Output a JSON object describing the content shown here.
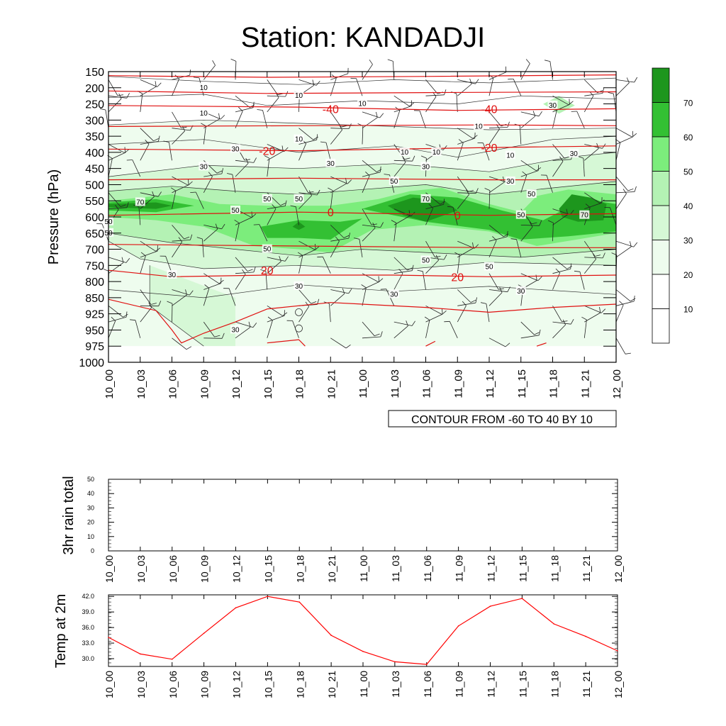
{
  "page": {
    "title": "Station: KANDADJI"
  },
  "chart_data": [
    {
      "type": "heatmap",
      "subtype": "filled contour with wind barbs and temperature isolines",
      "ylabel": "Pressure (hPa)",
      "y_ticks": [
        150,
        200,
        250,
        300,
        350,
        400,
        450,
        500,
        550,
        600,
        650,
        700,
        750,
        800,
        850,
        925,
        950,
        975,
        1000
      ],
      "x_ticks": [
        "10_00",
        "10_03",
        "10_06",
        "10_09",
        "10_12",
        "10_15",
        "10_18",
        "10_21",
        "11_00",
        "11_03",
        "11_06",
        "11_09",
        "11_12",
        "11_15",
        "11_18",
        "11_21",
        "12_00"
      ],
      "info_box": "CONTOUR FROM -60 TO 40 BY 10",
      "colorbar_labels": [
        "10",
        "20",
        "30",
        "40",
        "50",
        "60",
        "70"
      ],
      "colorbar_colors": [
        "#ffffff",
        "#ffffff",
        "#eefcee",
        "#d6f8d6",
        "#b4f2b4",
        "#7ced7c",
        "#33c033",
        "#1d961d"
      ],
      "humidity_labels": [
        {
          "text": "10",
          "time": "10_09",
          "p": "200"
        },
        {
          "text": "10",
          "time": "10_18",
          "p": "225"
        },
        {
          "text": "10",
          "time": "11_00",
          "p": "250"
        },
        {
          "text": "10",
          "time": "10_09",
          "p": "280"
        },
        {
          "text": "10",
          "time": "11_11",
          "p": "320"
        },
        {
          "text": "10",
          "time": "10_18",
          "p": "360"
        },
        {
          "text": "10",
          "time": "11_04",
          "p": "400"
        },
        {
          "text": "10",
          "time": "11_07",
          "p": "400"
        },
        {
          "text": "10",
          "time": "11_14",
          "p": "410"
        },
        {
          "text": "30",
          "time": "11_18",
          "p": "255"
        },
        {
          "text": "30",
          "time": "10_12",
          "p": "390"
        },
        {
          "text": "30",
          "time": "10_09",
          "p": "445"
        },
        {
          "text": "30",
          "time": "10_21",
          "p": "435"
        },
        {
          "text": "30",
          "time": "11_06",
          "p": "445"
        },
        {
          "text": "30",
          "time": "11_20",
          "p": "405"
        },
        {
          "text": "30",
          "time": "11_14",
          "p": "490"
        },
        {
          "text": "50",
          "time": "11_03",
          "p": "490"
        },
        {
          "text": "50",
          "time": "11_16",
          "p": "530"
        },
        {
          "text": "70",
          "time": "10_03",
          "p": "555"
        },
        {
          "text": "50",
          "time": "10_15",
          "p": "545"
        },
        {
          "text": "50",
          "time": "10_18",
          "p": "545"
        },
        {
          "text": "70",
          "time": "11_06",
          "p": "545"
        },
        {
          "text": "50",
          "time": "10_12",
          "p": "580"
        },
        {
          "text": "50",
          "time": "11_15",
          "p": "595"
        },
        {
          "text": "70",
          "time": "11_21",
          "p": "595"
        },
        {
          "text": "50",
          "time": "10_00",
          "p": "615"
        },
        {
          "text": "50",
          "time": "10_00",
          "p": "650"
        },
        {
          "text": "50",
          "time": "10_15",
          "p": "700"
        },
        {
          "text": "50",
          "time": "11_06",
          "p": "735"
        },
        {
          "text": "50",
          "time": "11_12",
          "p": "755"
        },
        {
          "text": "30",
          "time": "10_06",
          "p": "780"
        },
        {
          "text": "30",
          "time": "10_18",
          "p": "815"
        },
        {
          "text": "30",
          "time": "11_03",
          "p": "840"
        },
        {
          "text": "30",
          "time": "11_15",
          "p": "830"
        },
        {
          "text": "30",
          "time": "10_12",
          "p": "950"
        }
      ],
      "temperature_labels": [
        {
          "text": "-40",
          "time": "10_21",
          "p": "265"
        },
        {
          "text": "-40",
          "time": "11_12",
          "p": "265"
        },
        {
          "text": "-20",
          "time": "10_15",
          "p": "395"
        },
        {
          "text": "-20",
          "time": "11_12",
          "p": "385"
        },
        {
          "text": "0",
          "time": "10_21",
          "p": "585"
        },
        {
          "text": "0",
          "time": "11_09",
          "p": "595"
        },
        {
          "text": "20",
          "time": "10_15",
          "p": "765"
        },
        {
          "text": "20",
          "time": "11_09",
          "p": "785"
        }
      ]
    },
    {
      "type": "bar",
      "ylabel": "3hr rain total",
      "ylim": [
        0,
        50
      ],
      "y_ticks": [
        "0",
        "10",
        "20",
        "30",
        "40",
        "50"
      ],
      "x_ticks": [
        "10_00",
        "10_03",
        "10_06",
        "10_09",
        "10_12",
        "10_15",
        "10_18",
        "10_21",
        "11_00",
        "11_03",
        "11_06",
        "11_09",
        "11_12",
        "11_15",
        "11_18",
        "11_21",
        "12_00"
      ],
      "values": [
        0,
        0,
        0,
        0,
        0,
        0,
        0,
        0,
        0,
        0,
        0,
        0,
        0,
        0,
        0,
        0,
        0
      ]
    },
    {
      "type": "line",
      "ylabel": "Temp at 2m",
      "ylim": [
        28.5,
        42.3
      ],
      "y_ticks": [
        "30.0",
        "33.0",
        "36.0",
        "39.0",
        "42.0"
      ],
      "x_ticks": [
        "10_00",
        "10_03",
        "10_06",
        "10_09",
        "10_12",
        "10_15",
        "10_18",
        "10_21",
        "11_00",
        "11_03",
        "11_06",
        "11_09",
        "11_12",
        "11_15",
        "11_18",
        "11_21",
        "12_00"
      ],
      "values": [
        34.1,
        30.9,
        29.9,
        34.9,
        39.8,
        42.0,
        40.9,
        34.5,
        31.4,
        29.4,
        28.9,
        36.3,
        40.1,
        41.6,
        36.7,
        34.3,
        31.5
      ],
      "color": "#ff0000"
    }
  ]
}
